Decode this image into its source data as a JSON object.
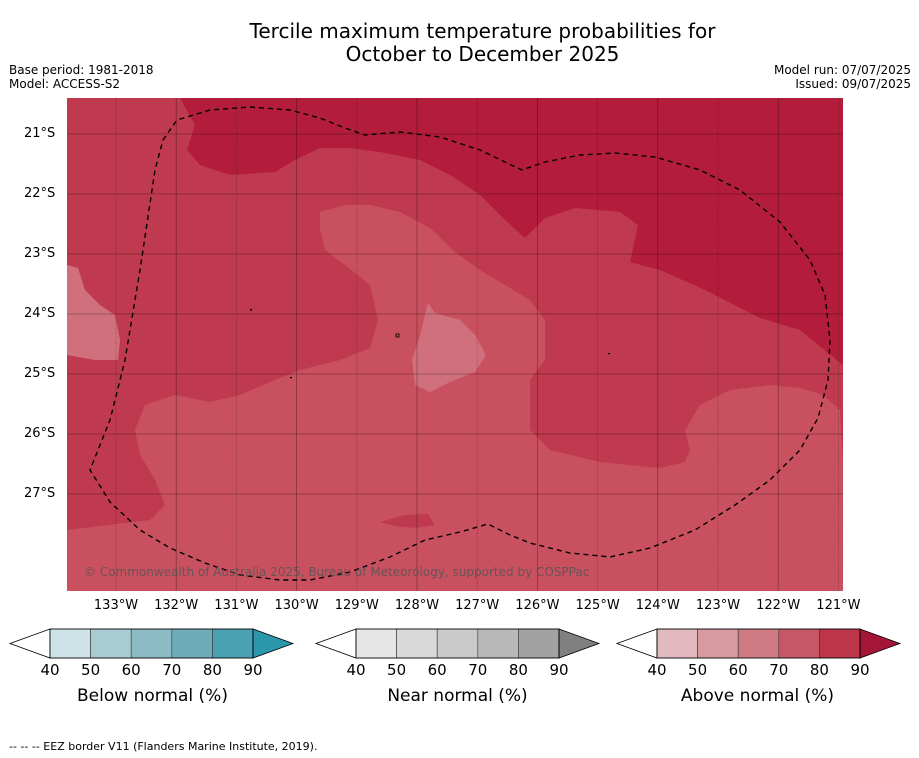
{
  "title_line1": "Tercile maximum temperature probabilities for",
  "title_line2": "October to December 2025",
  "base_period": "Base period: 1981-2018",
  "model": "Model: ACCESS-S2",
  "model_run": "Model run: 07/07/2025",
  "issued": "Issued: 09/07/2025",
  "credit": "© Commonwealth of Australia 2025, Bureau of Meteorology, supported by COSPPac",
  "lat_labels": [
    "21°S",
    "22°S",
    "23°S",
    "24°S",
    "25°S",
    "26°S",
    "27°S"
  ],
  "lon_labels": [
    "133°W",
    "132°W",
    "131°W",
    "130°W",
    "129°W",
    "128°W",
    "127°W",
    "126°W",
    "125°W",
    "124°W",
    "123°W",
    "122°W",
    "121°W"
  ],
  "colorbars": [
    {
      "title": "Below normal (%)",
      "ticks": [
        "40",
        "50",
        "60",
        "70",
        "80",
        "90"
      ],
      "colors": [
        "#ffffff",
        "#cde3e8",
        "#a9cbd2",
        "#8cbbc6",
        "#6fabb9",
        "#4aa1b2",
        "#2b97ab"
      ]
    },
    {
      "title": "Near normal (%)",
      "ticks": [
        "40",
        "50",
        "60",
        "70",
        "80",
        "90"
      ],
      "colors": [
        "#ffffff",
        "#e6e6e6",
        "#d9d9d9",
        "#cacaca",
        "#b8b8b8",
        "#a2a2a2",
        "#808080"
      ]
    },
    {
      "title": "Above normal (%)",
      "ticks": [
        "40",
        "50",
        "60",
        "70",
        "80",
        "90"
      ],
      "colors": [
        "#ffffff",
        "#e2b9be",
        "#d89aa1",
        "#d07a84",
        "#c65766",
        "#bc3549",
        "#a51538"
      ]
    }
  ],
  "map_colors": {
    "band_70_80": "#c9505e",
    "band_80_90": "#bf3a4e",
    "band_90": "#b31d3b",
    "band_60_70": "#d0707c"
  },
  "eez_note": "--  --  -- EEZ border V11 (Flanders Marine Institute, 2019)."
}
